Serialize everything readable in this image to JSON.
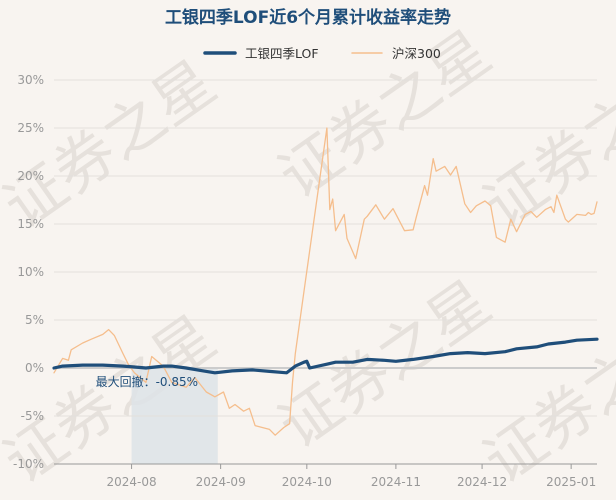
{
  "chart_data": {
    "type": "line",
    "title": "工银四季LOF近6个月累计收益率走势",
    "y_unit": "%",
    "ylim": [
      -10,
      30
    ],
    "y_ticks": [
      30,
      25,
      20,
      15,
      10,
      5,
      0,
      -5,
      -10
    ],
    "y_tick_labels": [
      "30%",
      "25%",
      "20%",
      "15%",
      "10%",
      "5%",
      "0%",
      "-5%",
      "-10%"
    ],
    "x_tick_labels": [
      "2024-08",
      "2024-09",
      "2024-10",
      "2024-11",
      "2024-12",
      "2025-01"
    ],
    "x_tick_dates": [
      "2024-08-01",
      "2024-09-01",
      "2024-10-01",
      "2024-11-01",
      "2024-12-01",
      "2025-01-01"
    ],
    "x_range": [
      "2024-07-05",
      "2025-01-10"
    ],
    "legend_position": "top-center",
    "watermark": "证券之星",
    "series": [
      {
        "name": "工银四季LOF",
        "color": "#1f4e7a",
        "points": [
          [
            "2024-07-05",
            0.0
          ],
          [
            "2024-07-08",
            0.2
          ],
          [
            "2024-07-15",
            0.3
          ],
          [
            "2024-07-22",
            0.3
          ],
          [
            "2024-07-29",
            0.2
          ],
          [
            "2024-08-02",
            0.1
          ],
          [
            "2024-08-06",
            0.0
          ],
          [
            "2024-08-12",
            0.2
          ],
          [
            "2024-08-15",
            0.2
          ],
          [
            "2024-08-20",
            0.0
          ],
          [
            "2024-08-26",
            -0.3
          ],
          [
            "2024-08-30",
            -0.5
          ],
          [
            "2024-09-05",
            -0.3
          ],
          [
            "2024-09-12",
            -0.2
          ],
          [
            "2024-09-18",
            -0.35
          ],
          [
            "2024-09-24",
            -0.5
          ],
          [
            "2024-09-27",
            0.2
          ],
          [
            "2024-09-30",
            0.6
          ],
          [
            "2024-10-01",
            0.7
          ],
          [
            "2024-10-02",
            0.0
          ],
          [
            "2024-10-08",
            0.4
          ],
          [
            "2024-10-11",
            0.6
          ],
          [
            "2024-10-17",
            0.6
          ],
          [
            "2024-10-22",
            0.9
          ],
          [
            "2024-10-28",
            0.8
          ],
          [
            "2024-11-01",
            0.7
          ],
          [
            "2024-11-07",
            0.9
          ],
          [
            "2024-11-14",
            1.2
          ],
          [
            "2024-11-20",
            1.5
          ],
          [
            "2024-11-26",
            1.6
          ],
          [
            "2024-12-02",
            1.5
          ],
          [
            "2024-12-09",
            1.7
          ],
          [
            "2024-12-13",
            2.0
          ],
          [
            "2024-12-20",
            2.2
          ],
          [
            "2024-12-24",
            2.5
          ],
          [
            "2024-12-30",
            2.7
          ],
          [
            "2025-01-03",
            2.9
          ],
          [
            "2025-01-10",
            3.0
          ]
        ]
      },
      {
        "name": "沪深300",
        "color": "#f5be8d",
        "points": [
          [
            "2024-07-05",
            -0.5
          ],
          [
            "2024-07-08",
            1.0
          ],
          [
            "2024-07-10",
            0.8
          ],
          [
            "2024-07-11",
            1.9
          ],
          [
            "2024-07-15",
            2.6
          ],
          [
            "2024-07-18",
            3.0
          ],
          [
            "2024-07-22",
            3.5
          ],
          [
            "2024-07-24",
            4.0
          ],
          [
            "2024-07-26",
            3.4
          ],
          [
            "2024-07-29",
            1.5
          ],
          [
            "2024-07-31",
            0.3
          ],
          [
            "2024-08-02",
            -0.5
          ],
          [
            "2024-08-06",
            -1.5
          ],
          [
            "2024-08-08",
            1.2
          ],
          [
            "2024-08-12",
            0.2
          ],
          [
            "2024-08-15",
            -1.5
          ],
          [
            "2024-08-20",
            -2.0
          ],
          [
            "2024-08-23",
            -1.0
          ],
          [
            "2024-08-27",
            -2.5
          ],
          [
            "2024-08-30",
            -3.0
          ],
          [
            "2024-09-02",
            -2.5
          ],
          [
            "2024-09-04",
            -4.2
          ],
          [
            "2024-09-06",
            -3.8
          ],
          [
            "2024-09-09",
            -4.5
          ],
          [
            "2024-09-11",
            -4.2
          ],
          [
            "2024-09-13",
            -6.0
          ],
          [
            "2024-09-18",
            -6.4
          ],
          [
            "2024-09-20",
            -7.0
          ],
          [
            "2024-09-23",
            -6.2
          ],
          [
            "2024-09-25",
            -5.8
          ],
          [
            "2024-09-26",
            -1.5
          ],
          [
            "2024-09-27",
            1.5
          ],
          [
            "2024-09-30",
            8.0
          ],
          [
            "2024-10-08",
            25.0
          ],
          [
            "2024-10-09",
            16.5
          ],
          [
            "2024-10-10",
            17.6
          ],
          [
            "2024-10-11",
            14.3
          ],
          [
            "2024-10-14",
            16.0
          ],
          [
            "2024-10-15",
            13.5
          ],
          [
            "2024-10-18",
            11.4
          ],
          [
            "2024-10-21",
            15.5
          ],
          [
            "2024-10-22",
            15.8
          ],
          [
            "2024-10-25",
            17.0
          ],
          [
            "2024-10-28",
            15.5
          ],
          [
            "2024-10-31",
            16.6
          ],
          [
            "2024-11-04",
            14.3
          ],
          [
            "2024-11-07",
            14.4
          ],
          [
            "2024-11-08",
            15.6
          ],
          [
            "2024-11-11",
            19.0
          ],
          [
            "2024-11-12",
            18.0
          ],
          [
            "2024-11-14",
            21.8
          ],
          [
            "2024-11-15",
            20.5
          ],
          [
            "2024-11-18",
            21.0
          ],
          [
            "2024-11-20",
            20.1
          ],
          [
            "2024-11-22",
            21.0
          ],
          [
            "2024-11-25",
            17.1
          ],
          [
            "2024-11-27",
            16.2
          ],
          [
            "2024-11-29",
            16.9
          ],
          [
            "2024-12-02",
            17.4
          ],
          [
            "2024-12-04",
            16.9
          ],
          [
            "2024-12-06",
            13.6
          ],
          [
            "2024-12-09",
            13.1
          ],
          [
            "2024-12-11",
            15.5
          ],
          [
            "2024-12-13",
            14.2
          ],
          [
            "2024-12-16",
            16.0
          ],
          [
            "2024-12-18",
            16.3
          ],
          [
            "2024-12-20",
            15.7
          ],
          [
            "2024-12-23",
            16.5
          ],
          [
            "2024-12-25",
            16.8
          ],
          [
            "2024-12-26",
            16.2
          ],
          [
            "2024-12-27",
            18.0
          ],
          [
            "2024-12-30",
            15.5
          ],
          [
            "2024-12-31",
            15.2
          ],
          [
            "2025-01-03",
            16.0
          ],
          [
            "2025-01-06",
            15.9
          ],
          [
            "2025-01-07",
            16.2
          ],
          [
            "2025-01-08",
            16.0
          ],
          [
            "2025-01-09",
            16.1
          ],
          [
            "2025-01-10",
            17.3
          ]
        ]
      }
    ],
    "max_drawdown": {
      "label": "最大回撤：-0.85%",
      "start": "2024-08-01",
      "end": "2024-08-31",
      "band_color": "#dde3e8"
    }
  }
}
